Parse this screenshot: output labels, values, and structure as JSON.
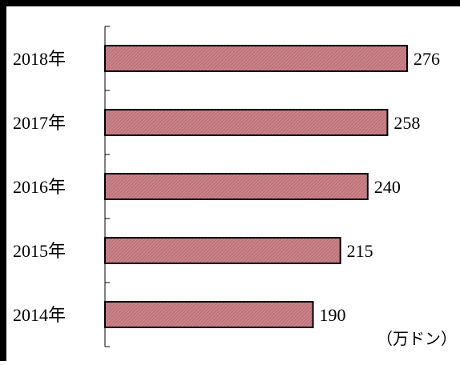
{
  "chart_data": {
    "type": "bar",
    "orientation": "horizontal",
    "categories": [
      "2018年",
      "2017年",
      "2016年",
      "2015年",
      "2014年"
    ],
    "values": [
      276,
      258,
      240,
      215,
      190
    ],
    "unit_label": "（万ドン）",
    "xlim": [
      0,
      300
    ],
    "grid": false,
    "legend": "none",
    "colors": {
      "bar_fill": "#c98288",
      "bar_hatch": "#a85c63",
      "bar_stroke": "#000000",
      "frame": "#000000"
    }
  }
}
